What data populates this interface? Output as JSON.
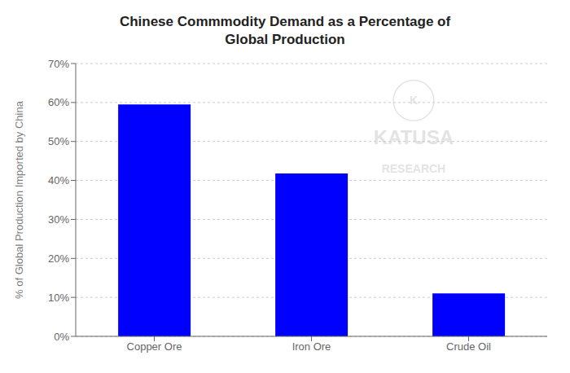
{
  "chart_data": {
    "type": "bar",
    "title": "Chinese Commmodity Demand as a Percentage of\nGlobal Production",
    "categories": [
      "Copper Ore",
      "Iron Ore",
      "Crude Oil"
    ],
    "values": [
      59.5,
      41.8,
      11.0
    ],
    "color": "#0000FF",
    "ylabel": "% of Global Production Imported by China",
    "ylim": [
      0,
      70
    ],
    "yticks": [
      {
        "value": 0,
        "label": "0%"
      },
      {
        "value": 10,
        "label": "10%"
      },
      {
        "value": 20,
        "label": "20%"
      },
      {
        "value": 30,
        "label": "30%"
      },
      {
        "value": 40,
        "label": "40%"
      },
      {
        "value": 50,
        "label": "50%"
      },
      {
        "value": 60,
        "label": "60%"
      },
      {
        "value": 70,
        "label": "70%"
      }
    ],
    "grid": true,
    "annotations": [
      "KATUSA",
      "RESEARCH",
      "K"
    ]
  }
}
